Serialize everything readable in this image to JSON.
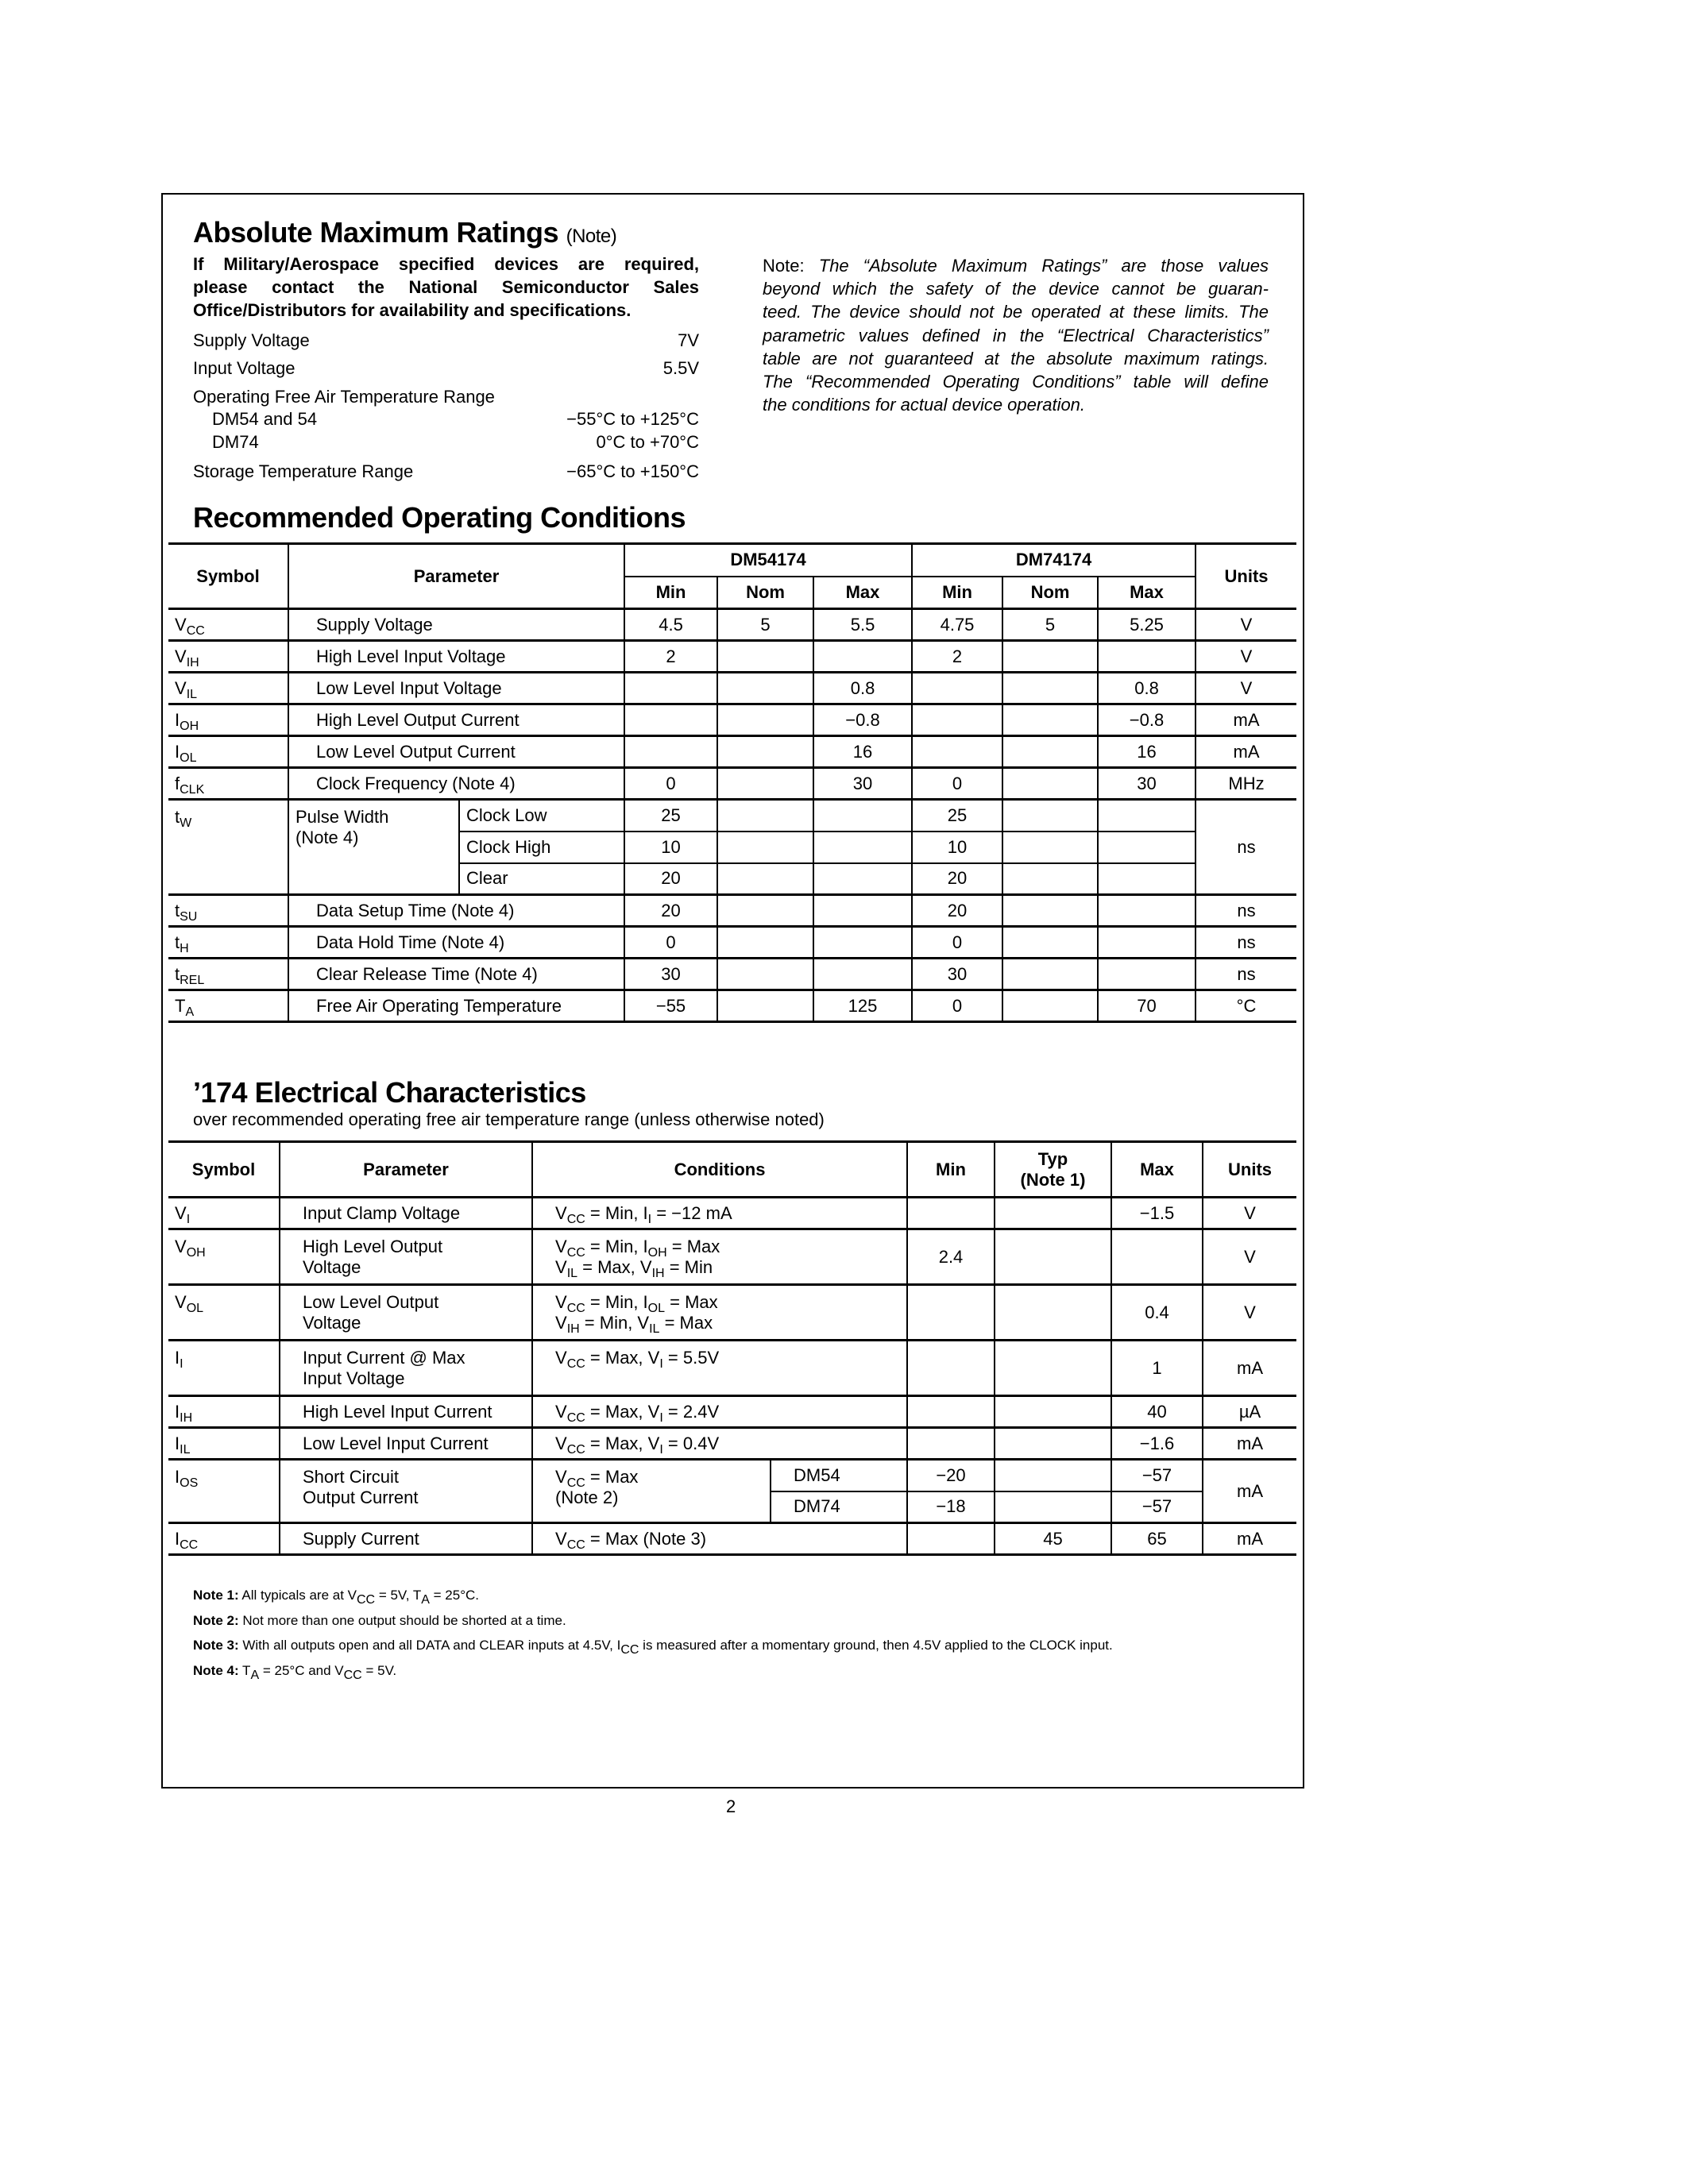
{
  "abs_max": {
    "title": "Absolute Maximum Ratings",
    "title_note": "(Note)",
    "military_notice": [
      "If Military/Aerospace specified devices are required,",
      "please contact the National Semiconductor Sales",
      "Office/Distributors for availability and specifications."
    ],
    "items": [
      {
        "label": "Supply Voltage",
        "value": "7V"
      },
      {
        "label": "Input Voltage",
        "value": "5.5V"
      },
      {
        "label": "Operating Free Air Temperature Range",
        "value": ""
      },
      {
        "label": "DM54 and 54",
        "value": "−55°C to +125°C"
      },
      {
        "label": "DM74",
        "value": "0°C to +70°C"
      },
      {
        "label": "Storage Temperature Range",
        "value": "−65°C to +150°C"
      }
    ],
    "note_label": "Note:",
    "note_lines": [
      "The “Absolute Maximum Ratings” are those values",
      "beyond which the safety of the device cannot be guaran-",
      "teed. The device should not be operated at these limits. The",
      "parametric values defined in the “Electrical Characteristics”",
      "table are not guaranteed at the absolute maximum ratings.",
      "The “Recommended Operating Conditions” table will define",
      "the conditions for actual device operation."
    ]
  },
  "rec": {
    "title": "Recommended Operating Conditions",
    "headers": {
      "symbol": "Symbol",
      "parameter": "Parameter",
      "dm54": "DM54174",
      "dm74": "DM74174",
      "units": "Units",
      "min": "Min",
      "nom": "Nom",
      "max": "Max"
    },
    "rows": [
      {
        "symbol": "V_{CC}",
        "parameter": "Supply Voltage",
        "dm54": [
          "4.5",
          "5",
          "5.5"
        ],
        "dm74": [
          "4.75",
          "5",
          "5.25"
        ],
        "units": "V"
      },
      {
        "symbol": "V_{IH}",
        "parameter": "High Level Input Voltage",
        "dm54": [
          "2",
          "",
          ""
        ],
        "dm74": [
          "2",
          "",
          ""
        ],
        "units": "V"
      },
      {
        "symbol": "V_{IL}",
        "parameter": "Low Level Input Voltage",
        "dm54": [
          "",
          "",
          "0.8"
        ],
        "dm74": [
          "",
          "",
          "0.8"
        ],
        "units": "V"
      },
      {
        "symbol": "I_{OH}",
        "parameter": "High Level Output Current",
        "dm54": [
          "",
          "",
          "−0.8"
        ],
        "dm74": [
          "",
          "",
          "−0.8"
        ],
        "units": "mA"
      },
      {
        "symbol": "I_{OL}",
        "parameter": "Low Level Output Current",
        "dm54": [
          "",
          "",
          "16"
        ],
        "dm74": [
          "",
          "",
          "16"
        ],
        "units": "mA"
      },
      {
        "symbol": "f_{CLK}",
        "parameter": "Clock Frequency (Note 4)",
        "dm54": [
          "0",
          "",
          "30"
        ],
        "dm74": [
          "0",
          "",
          "30"
        ],
        "units": "MHz"
      },
      {
        "symbol": "t_{W}",
        "parameter": "Pulse Width",
        "parameter2": "(Note 4)",
        "units": "ns",
        "sub": [
          {
            "label": "Clock Low",
            "dm54": [
              "25",
              "",
              ""
            ],
            "dm74": [
              "25",
              "",
              ""
            ]
          },
          {
            "label": "Clock High",
            "dm54": [
              "10",
              "",
              ""
            ],
            "dm74": [
              "10",
              "",
              ""
            ]
          },
          {
            "label": "Clear",
            "dm54": [
              "20",
              "",
              ""
            ],
            "dm74": [
              "20",
              "",
              ""
            ]
          }
        ]
      },
      {
        "symbol": "t_{SU}",
        "parameter": "Data Setup Time (Note 4)",
        "dm54": [
          "20",
          "",
          ""
        ],
        "dm74": [
          "20",
          "",
          ""
        ],
        "units": "ns"
      },
      {
        "symbol": "t_{H}",
        "parameter": "Data Hold Time (Note 4)",
        "dm54": [
          "0",
          "",
          ""
        ],
        "dm74": [
          "0",
          "",
          ""
        ],
        "units": "ns"
      },
      {
        "symbol": "t_{REL}",
        "parameter": "Clear Release Time (Note 4)",
        "dm54": [
          "30",
          "",
          ""
        ],
        "dm74": [
          "30",
          "",
          ""
        ],
        "units": "ns"
      },
      {
        "symbol": "T_{A}",
        "parameter": "Free Air Operating Temperature",
        "dm54": [
          "−55",
          "",
          "125"
        ],
        "dm74": [
          "0",
          "",
          "70"
        ],
        "units": "°C"
      }
    ]
  },
  "elec": {
    "title": "’174 Electrical Characteristics",
    "subtitle": "over recommended operating free air temperature range (unless otherwise noted)",
    "headers": {
      "symbol": "Symbol",
      "parameter": "Parameter",
      "conditions": "Conditions",
      "min": "Min",
      "typ": "Typ",
      "typ_note": "(Note 1)",
      "max": "Max",
      "units": "Units"
    },
    "rows": [
      {
        "symbol": "V_{I}",
        "parameter": [
          "Input Clamp Voltage"
        ],
        "conditions": [
          "V_{CC} = Min, I_{I} = −12 mA"
        ],
        "min": "",
        "typ": "",
        "max": "−1.5",
        "units": "V"
      },
      {
        "symbol": "V_{OH}",
        "parameter": [
          "High Level Output",
          "Voltage"
        ],
        "conditions": [
          "V_{CC} = Min, I_{OH} = Max",
          "V_{IL} = Max, V_{IH} = Min"
        ],
        "min": "2.4",
        "typ": "",
        "max": "",
        "units": "V"
      },
      {
        "symbol": "V_{OL}",
        "parameter": [
          "Low Level Output",
          "Voltage"
        ],
        "conditions": [
          "V_{CC} = Min, I_{OL} = Max",
          "V_{IH} = Min, V_{IL} = Max"
        ],
        "min": "",
        "typ": "",
        "max": "0.4",
        "units": "V"
      },
      {
        "symbol": "I_{I}",
        "parameter": [
          "Input Current @ Max",
          "Input Voltage"
        ],
        "conditions": [
          "V_{CC} = Max, V_{I} = 5.5V"
        ],
        "min": "",
        "typ": "",
        "max": "1",
        "units": "mA"
      },
      {
        "symbol": "I_{IH}",
        "parameter": [
          "High Level Input Current"
        ],
        "conditions": [
          "V_{CC} = Max, V_{I} = 2.4V"
        ],
        "min": "",
        "typ": "",
        "max": "40",
        "units": "µA"
      },
      {
        "symbol": "I_{IL}",
        "parameter": [
          "Low Level Input Current"
        ],
        "conditions": [
          "V_{CC} = Max, V_{I} = 0.4V"
        ],
        "min": "",
        "typ": "",
        "max": "−1.6",
        "units": "mA"
      },
      {
        "symbol": "I_{OS}",
        "parameter": [
          "Short Circuit",
          "Output Current"
        ],
        "conditions": [
          "V_{CC} = Max",
          "(Note 2)"
        ],
        "units": "mA",
        "sub": [
          {
            "device": "DM54",
            "min": "−20",
            "typ": "",
            "max": "−57"
          },
          {
            "device": "DM74",
            "min": "−18",
            "typ": "",
            "max": "−57"
          }
        ]
      },
      {
        "symbol": "I_{CC}",
        "parameter": [
          "Supply Current"
        ],
        "conditions": [
          "V_{CC} = Max (Note 3)"
        ],
        "min": "",
        "typ": "45",
        "max": "65",
        "units": "mA"
      }
    ],
    "notes": [
      {
        "label": "Note 1:",
        "text": "All typicals are at V_{CC} = 5V, T_{A} = 25°C."
      },
      {
        "label": "Note 2:",
        "text": "Not more than one output should be shorted at a time."
      },
      {
        "label": "Note 3:",
        "text": "With all outputs open and all DATA and CLEAR inputs at 4.5V, I_{CC} is measured after a momentary ground, then 4.5V applied to the CLOCK input."
      },
      {
        "label": "Note 4:",
        "text": "T_{A} = 25°C and V_{CC} = 5V."
      }
    ]
  },
  "page_number": "2"
}
